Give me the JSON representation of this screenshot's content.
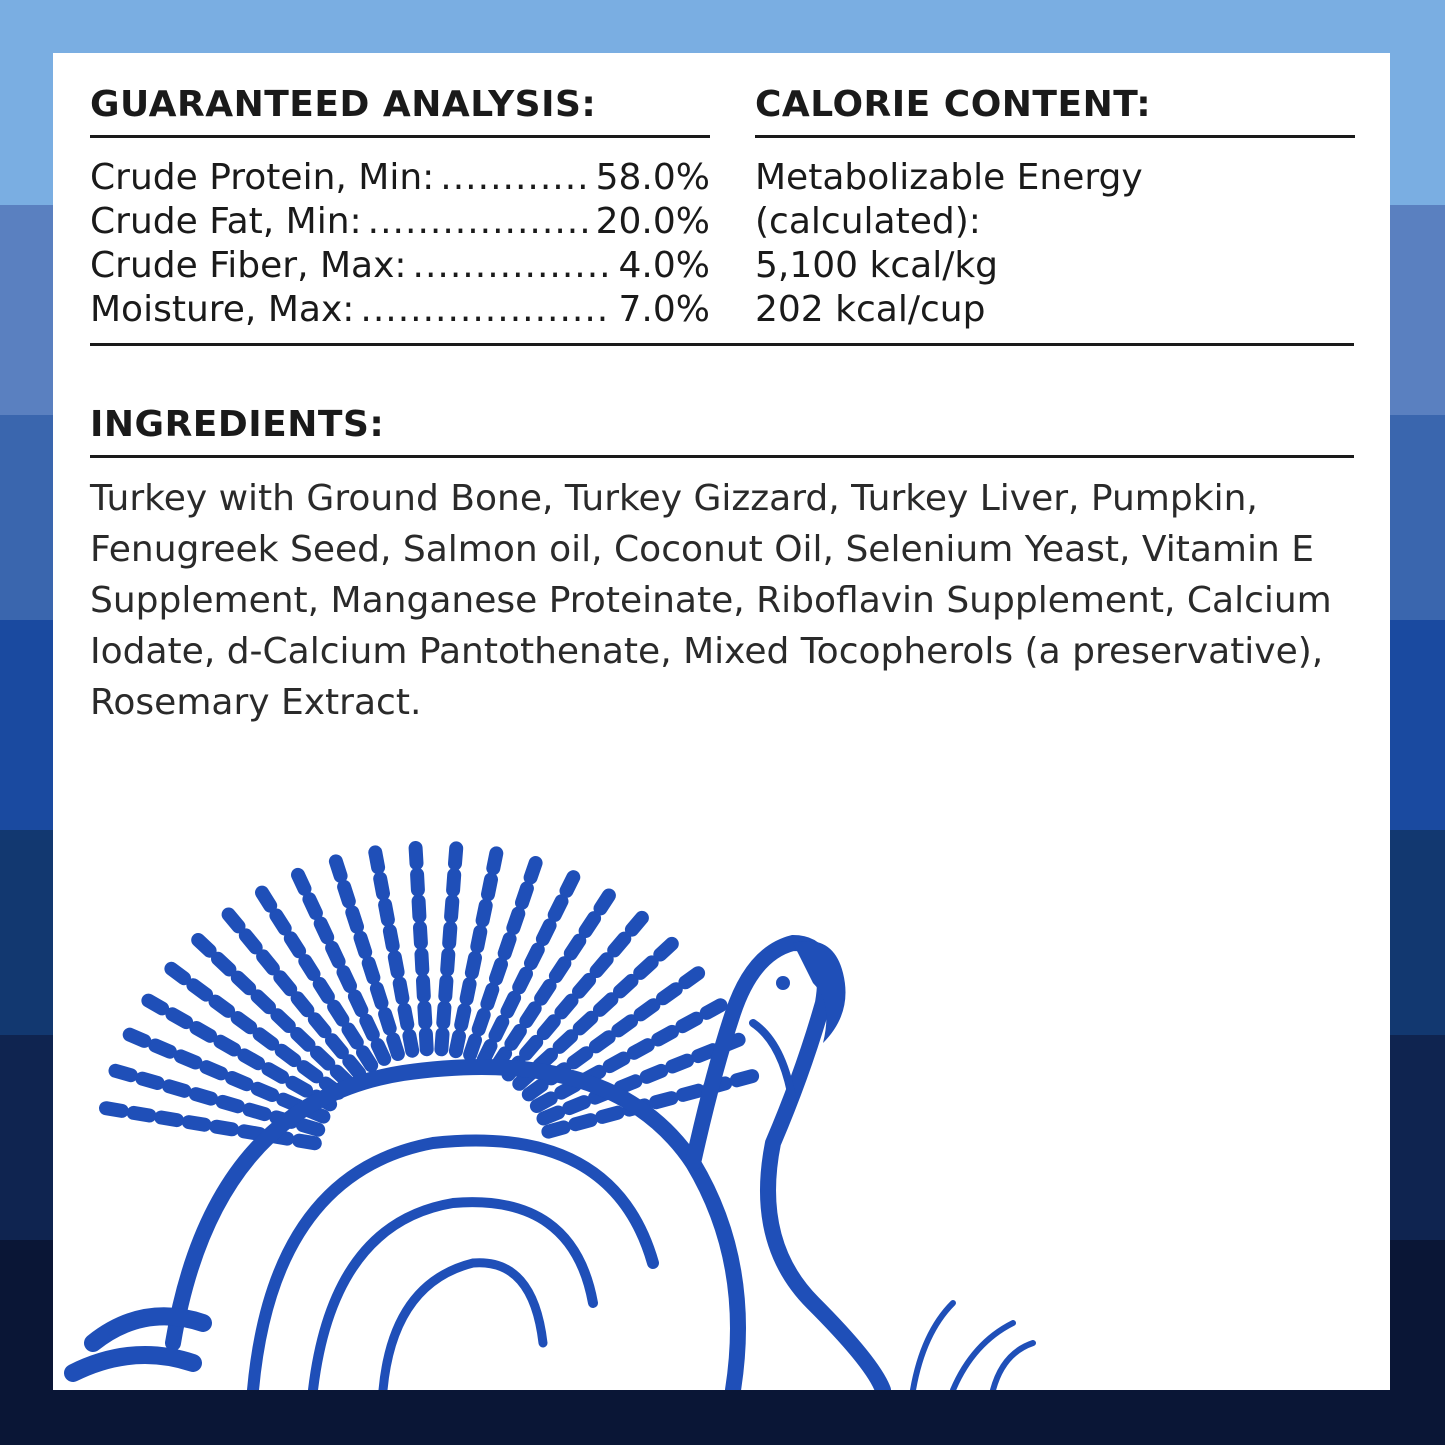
{
  "background_colors": [
    "#7aaee2",
    "#5a80c0",
    "#3a66ae",
    "#1a4aa0",
    "#123870",
    "#0f2450",
    "#0a1636"
  ],
  "illustration_color": "#1f4fb8",
  "illustration": "turkey",
  "guaranteed_analysis": {
    "title": "GUARANTEED ANALYSIS:",
    "rows": [
      {
        "label": "Crude Protein, Min:",
        "value": "58.0%"
      },
      {
        "label": "Crude Fat, Min:",
        "value": "20.0%"
      },
      {
        "label": "Crude Fiber, Max:",
        "value": "4.0%"
      },
      {
        "label": "Moisture, Max:",
        "value": "7.0%"
      }
    ]
  },
  "calorie_content": {
    "title": "CALORIE CONTENT:",
    "lines": [
      "Metabolizable Energy",
      "(calculated):",
      "5,100 kcal/kg",
      "202 kcal/cup"
    ]
  },
  "ingredients": {
    "title": "INGREDIENTS:",
    "text": "Turkey with Ground Bone, Turkey Gizzard, Turkey Liver, Pumpkin, Fenugreek Seed, Salmon oil, Coconut Oil, Selenium Yeast, Vitamin E Supplement, Manganese Proteinate, Riboflavin Supplement, Calcium Iodate, d-Calcium Pantothenate, Mixed Tocopherols (a preservative), Rosemary Extract."
  }
}
